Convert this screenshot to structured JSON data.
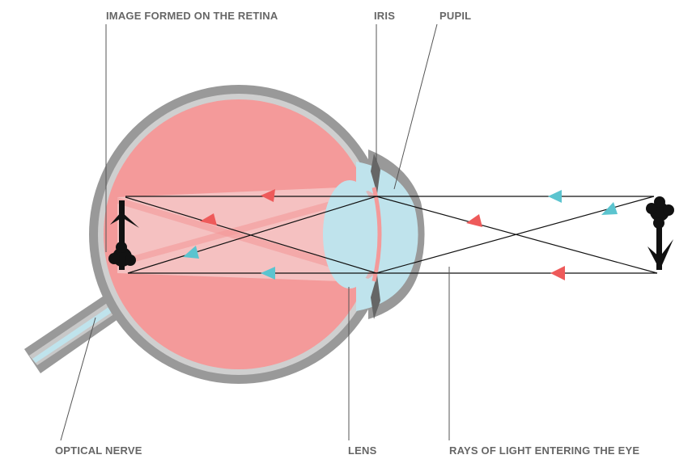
{
  "labels": {
    "retina_image": "IMAGE FORMED ON THE RETINA",
    "iris": "IRIS",
    "pupil": "PUPIL",
    "optical_nerve": "OPTICAL NERVE",
    "lens": "LENS",
    "rays": "RAYS OF LIGHT ENTERING THE EYE"
  }
}
